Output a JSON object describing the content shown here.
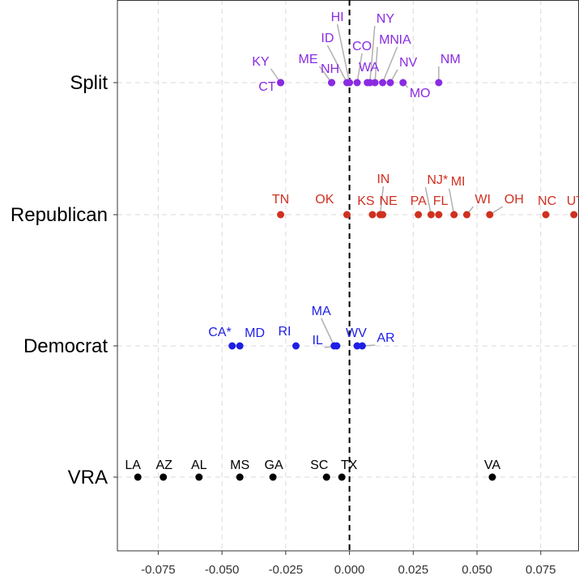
{
  "chart_data": {
    "type": "scatter",
    "xlabel": "",
    "ylabel": "",
    "xlim": [
      -0.091,
      0.09
    ],
    "x_ticks": [
      -0.075,
      -0.05,
      -0.025,
      0.0,
      0.025,
      0.05,
      0.075
    ],
    "x_tick_labels": [
      "-0.075",
      "-0.050",
      "-0.025",
      "0.000",
      "0.025",
      "0.050",
      "0.075"
    ],
    "reference_line_x": 0.0,
    "grid": true,
    "categories": [
      "Split",
      "Republican",
      "Democrat",
      "VRA"
    ],
    "series": [
      {
        "category": "Split",
        "color": "#8a2be2",
        "points": [
          {
            "label": "KY",
            "x": -0.027
          },
          {
            "label": "CT",
            "x": -0.027
          },
          {
            "label": "ME",
            "x": -0.007
          },
          {
            "label": "NH",
            "x": -0.007
          },
          {
            "label": "ID",
            "x": -0.001
          },
          {
            "label": "HI",
            "x": 0.0
          },
          {
            "label": "CO",
            "x": 0.003
          },
          {
            "label": "WA",
            "x": 0.007
          },
          {
            "label": "NY",
            "x": 0.008
          },
          {
            "label": "MN",
            "x": 0.01
          },
          {
            "label": "IA",
            "x": 0.013
          },
          {
            "label": "NV",
            "x": 0.016
          },
          {
            "label": "MO",
            "x": 0.021
          },
          {
            "label": "NM",
            "x": 0.035
          }
        ]
      },
      {
        "category": "Republican",
        "color": "#d03020",
        "points": [
          {
            "label": "TN",
            "x": -0.027
          },
          {
            "label": "OK",
            "x": -0.001
          },
          {
            "label": "KS",
            "x": 0.009
          },
          {
            "label": "IN",
            "x": 0.012
          },
          {
            "label": "NE",
            "x": 0.013
          },
          {
            "label": "PA",
            "x": 0.027
          },
          {
            "label": "NJ*",
            "x": 0.032
          },
          {
            "label": "FL",
            "x": 0.035
          },
          {
            "label": "MI",
            "x": 0.041
          },
          {
            "label": "WI",
            "x": 0.046
          },
          {
            "label": "OH",
            "x": 0.055
          },
          {
            "label": "NC",
            "x": 0.077
          },
          {
            "label": "UT",
            "x": 0.088
          }
        ]
      },
      {
        "category": "Democrat",
        "color": "#1e1ee6",
        "points": [
          {
            "label": "CA*",
            "x": -0.046
          },
          {
            "label": "MD",
            "x": -0.043
          },
          {
            "label": "RI",
            "x": -0.021
          },
          {
            "label": "MA",
            "x": -0.006
          },
          {
            "label": "IL",
            "x": -0.005
          },
          {
            "label": "WV",
            "x": 0.003
          },
          {
            "label": "AR",
            "x": 0.005
          }
        ]
      },
      {
        "category": "VRA",
        "color": "#000000",
        "points": [
          {
            "label": "LA",
            "x": -0.083
          },
          {
            "label": "AZ",
            "x": -0.073
          },
          {
            "label": "AL",
            "x": -0.059
          },
          {
            "label": "MS",
            "x": -0.043
          },
          {
            "label": "GA",
            "x": -0.03
          },
          {
            "label": "SC",
            "x": -0.009
          },
          {
            "label": "TX",
            "x": -0.003
          },
          {
            "label": "VA",
            "x": 0.056
          }
        ]
      }
    ]
  }
}
